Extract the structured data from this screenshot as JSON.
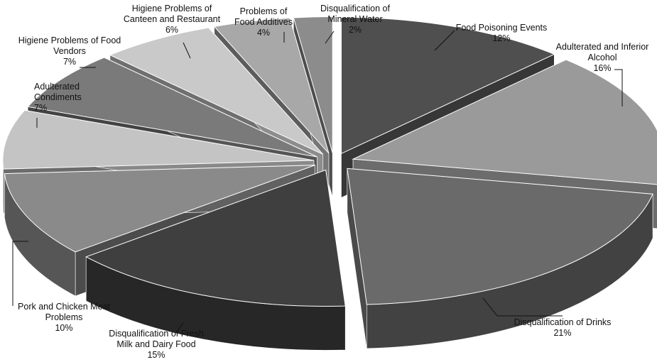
{
  "chart_data": {
    "type": "pie",
    "style": "3d-exploded",
    "slices": [
      {
        "label": [
          "Food Poisoning Events"
        ],
        "value": 12,
        "pct": "12%",
        "color": "#4f4f4f"
      },
      {
        "label": [
          "Adulterated and Inferior",
          "Alcohol"
        ],
        "value": 16,
        "pct": "16%",
        "color": "#9a9a9a"
      },
      {
        "label": [
          "Disqualification of Drinks"
        ],
        "value": 21,
        "pct": "21%",
        "color": "#6a6a6a"
      },
      {
        "label": [
          "Disqualification of Fresh",
          "Milk and Dairy Food"
        ],
        "value": 15,
        "pct": "15%",
        "color": "#3f3f3f"
      },
      {
        "label": [
          "Pork and Chicken Meat",
          "Problems"
        ],
        "value": 10,
        "pct": "10%",
        "color": "#8a8a8a"
      },
      {
        "label": [
          "Adulterated",
          "Condiments"
        ],
        "value": 7,
        "pct": "7%",
        "color": "#c4c4c4"
      },
      {
        "label": [
          "Higiene Problems of Food",
          "Vendors"
        ],
        "value": 7,
        "pct": "7%",
        "color": "#7a7a7a"
      },
      {
        "label": [
          "Higiene Problems of",
          "Canteen and Restaurant"
        ],
        "value": 6,
        "pct": "6%",
        "color": "#c9c9c9"
      },
      {
        "label": [
          "Problems of",
          "Food Additives"
        ],
        "value": 4,
        "pct": "4%",
        "color": "#a8a8a8"
      },
      {
        "label": [
          "Disqualification of",
          "Mineral Water"
        ],
        "value": 2,
        "pct": "2%",
        "color": "#8c8c8c"
      }
    ]
  }
}
